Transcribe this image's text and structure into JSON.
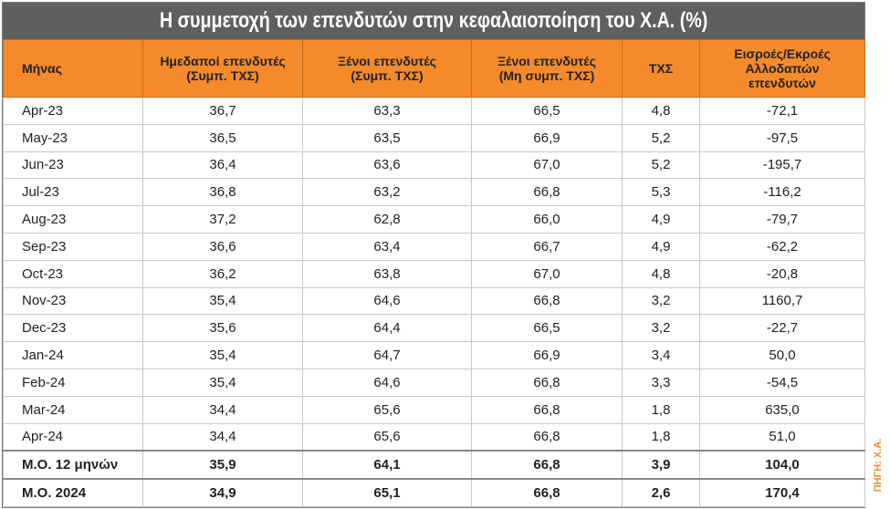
{
  "title": "Η συμμετοχή των επενδυτών στην κεφαλαιοποίηση του Χ.Α. (%)",
  "table": {
    "header": [
      [
        "Μήνας"
      ],
      [
        "Ημεδαποί επενδυτές",
        "(Συμπ. ΤΧΣ)"
      ],
      [
        "Ξένοι επενδυτές",
        "(Συμπ. ΤΧΣ)"
      ],
      [
        "Ξένοι επενδυτές",
        "(Μη συμπ. ΤΧΣ)"
      ],
      [
        "ΤΧΣ"
      ],
      [
        "Εισροές/Εκροές",
        "Αλλοδαπών",
        "επενδυτών"
      ]
    ],
    "rows": [
      [
        "Apr-23",
        "36,7",
        "63,3",
        "66,5",
        "4,8",
        "-72,1"
      ],
      [
        "May-23",
        "36,5",
        "63,5",
        "66,9",
        "5,2",
        "-97,5"
      ],
      [
        "Jun-23",
        "36,4",
        "63,6",
        "67,0",
        "5,2",
        "-195,7"
      ],
      [
        "Jul-23",
        "36,8",
        "63,2",
        "66,8",
        "5,3",
        "-116,2"
      ],
      [
        "Aug-23",
        "37,2",
        "62,8",
        "66,0",
        "4,9",
        "-79,7"
      ],
      [
        "Sep-23",
        "36,6",
        "63,4",
        "66,7",
        "4,9",
        "-62,2"
      ],
      [
        "Oct-23",
        "36,2",
        "63,8",
        "67,0",
        "4,8",
        "-20,8"
      ],
      [
        "Nov-23",
        "35,4",
        "64,6",
        "66,8",
        "3,2",
        "1160,7"
      ],
      [
        "Dec-23",
        "35,6",
        "64,4",
        "66,5",
        "3,2",
        "-22,7"
      ],
      [
        "Jan-24",
        "35,4",
        "64,7",
        "66,9",
        "3,4",
        "50,0"
      ],
      [
        "Feb-24",
        "35,4",
        "64,6",
        "66,8",
        "3,3",
        "-54,5"
      ],
      [
        "Mar-24",
        "34,4",
        "65,6",
        "66,8",
        "1,8",
        "635,0"
      ],
      [
        "Apr-24",
        "34,4",
        "65,6",
        "66,8",
        "1,8",
        "51,0"
      ]
    ],
    "summary_rows": [
      [
        "Μ.Ο. 12 μηνών",
        "35,9",
        "64,1",
        "66,8",
        "3,9",
        "104,0"
      ],
      [
        "Μ.Ο. 2024",
        "34,9",
        "65,1",
        "66,8",
        "2,6",
        "170,4"
      ]
    ]
  },
  "source": "ΠΗΓΗ: Χ.Α."
}
